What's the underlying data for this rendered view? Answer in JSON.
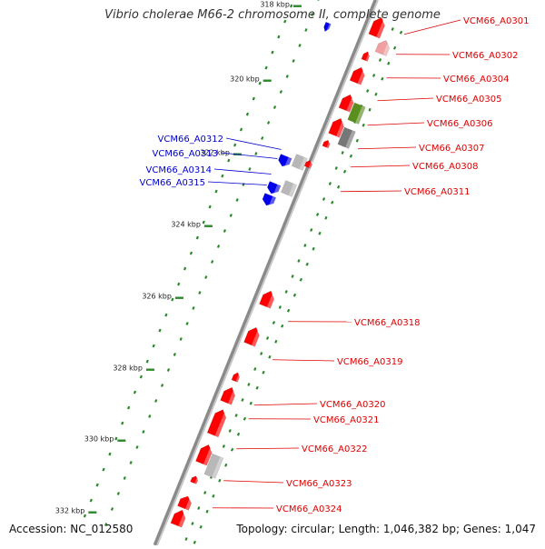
{
  "title": "Vibrio cholerae M66-2 chromosome II, complete genome",
  "accession": "Accession: NC_012580",
  "topology": "Topology: circular; Length: 1,046,382 bp; Genes: 1,047",
  "ticks": [
    "318 kbp",
    "320 kbp",
    "322 kbp",
    "324 kbp",
    "326 kbp",
    "328 kbp",
    "330 kbp",
    "332 kbp"
  ],
  "genes_right": [
    "VCM66_A0301",
    "VCM66_A0302",
    "VCM66_A0304",
    "VCM66_A0305",
    "VCM66_A0306",
    "VCM66_A0307",
    "VCM66_A0308",
    "VCM66_A0311",
    "VCM66_A0318",
    "VCM66_A0319",
    "VCM66_A0320",
    "VCM66_A0321",
    "VCM66_A0322",
    "VCM66_A0323",
    "VCM66_A0324"
  ],
  "genes_left": [
    "VCM66_A0312",
    "VCM66_A0313",
    "VCM66_A0314",
    "VCM66_A0315"
  ],
  "colors": {
    "forward": "#ff0000",
    "reverse": "#0000ee",
    "label_forward": "#dd0000",
    "label_reverse": "#0000cc",
    "rna": "#b8b8b8",
    "green": "#5a8f1e",
    "gray_dark": "#777777",
    "pink": "#f0a0a0",
    "tick": "#2a8a2a"
  }
}
